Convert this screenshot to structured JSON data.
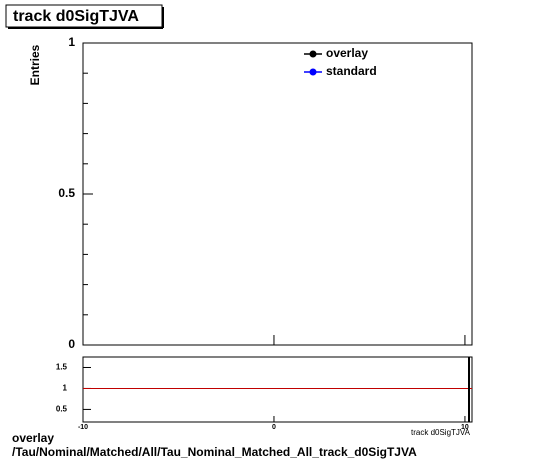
{
  "chart_data": [
    {
      "type": "line",
      "title": "track d0SigTJVA",
      "ylabel": "Entries",
      "xlim": [
        -10,
        10.37
      ],
      "ylim": [
        0,
        1
      ],
      "yticks": [
        0,
        0.5,
        1
      ],
      "series": [
        {
          "name": "overlay",
          "color": "#000000",
          "values": []
        },
        {
          "name": "standard",
          "color": "#0000ff",
          "values": []
        }
      ]
    },
    {
      "type": "ratio",
      "xlabel": "track d0SigTJVA",
      "xlim": [
        -10,
        10.37
      ],
      "xticks": [
        -10,
        0,
        10
      ],
      "ylim": [
        0.2,
        1.75
      ],
      "yticks": [
        0.5,
        1,
        1.5
      ]
    }
  ],
  "footer": {
    "line1": "overlay",
    "line2": "/Tau/Nominal/Matched/All/Tau_Nominal_Matched_All_track_d0SigTJVA"
  }
}
